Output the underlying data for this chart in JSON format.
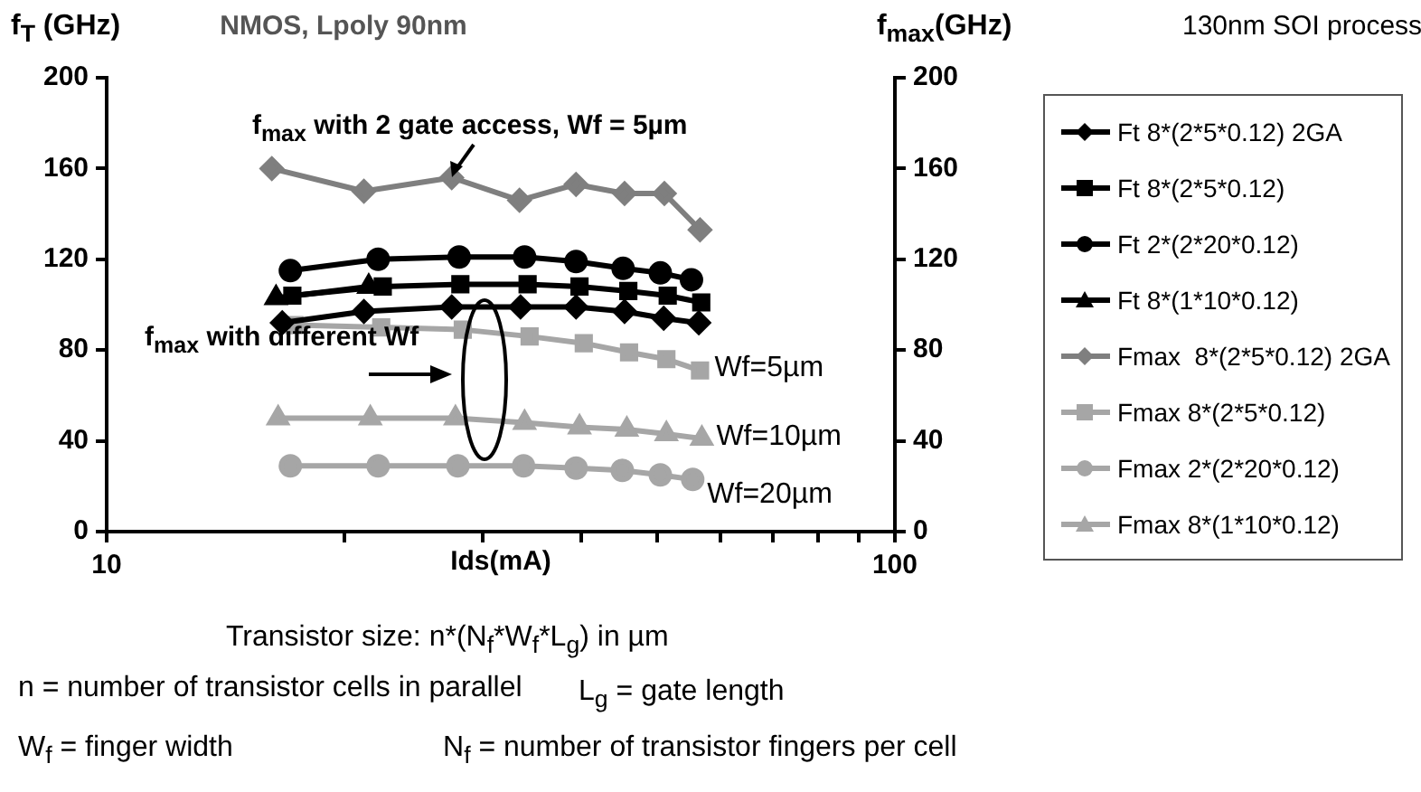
{
  "chart_data": {
    "type": "line",
    "title": "NMOS, Lpoly 90nm",
    "xlabel": "Ids(mA)",
    "ylabel": "f$_{T}$ (GHz)",
    "y2label": "f$_{max}$(GHz)",
    "log": "x",
    "xlim": [
      10,
      100
    ],
    "xticks": [
      10,
      {
        "value": 20,
        "label": null
      },
      {
        "value": 30,
        "label": null
      },
      {
        "value": 40,
        "label": null
      },
      {
        "value": 50,
        "label": null
      },
      {
        "value": 60,
        "label": null
      },
      {
        "value": 70,
        "label": null
      },
      {
        "value": 80,
        "label": null
      },
      {
        "value": 90,
        "label": null
      },
      100
    ],
    "ylim": [
      0,
      200
    ],
    "yticks": [
      0,
      40,
      80,
      120,
      160,
      200
    ],
    "y2lim": [
      0,
      200
    ],
    "y2ticks": [
      0,
      40,
      80,
      120,
      160,
      200
    ],
    "grid": false,
    "legend": "right",
    "line_style": "solid",
    "series": [
      {
        "name": "Ft 8*(2*5*0.12) 2GA",
        "color": "#000000",
        "marker": "diamond",
        "x": [
          16.7,
          21.2,
          27.4,
          33.5,
          39.4,
          45.4,
          50.9,
          56.4
        ],
        "values": [
          92,
          97,
          99,
          99,
          99,
          97,
          94,
          92
        ]
      },
      {
        "name": "Ft 8*(2*5*0.12)",
        "color": "#000000",
        "marker": "square",
        "x": [
          17.2,
          22.4,
          28.1,
          34.2,
          39.8,
          45.9,
          51.5,
          56.8
        ],
        "values": [
          104,
          108,
          109,
          109,
          108,
          106,
          104,
          101
        ]
      },
      {
        "name": "Ft 2*(2*20*0.12)",
        "color": "#000000",
        "marker": "circle",
        "x": [
          17.1,
          22.1,
          28,
          33.9,
          39.4,
          45.2,
          50.4,
          55.2
        ],
        "values": [
          115,
          120,
          121,
          121,
          119,
          116,
          114,
          111
        ]
      },
      {
        "name": "Ft 8*(1*10*0.12)",
        "color": "#000000",
        "marker": "triangle",
        "x": [
          16.4,
          21.5
        ],
        "values": [
          103,
          108
        ]
      },
      {
        "name": "Fmax  8*(2*5*0.12) 2GA",
        "color": "#7f7f7f",
        "marker": "diamond",
        "x": [
          16.2,
          21.2,
          27.4,
          33.4,
          39.4,
          45.4,
          51,
          56.6
        ],
        "values": [
          160,
          150,
          156,
          146,
          153,
          149,
          149,
          133
        ]
      },
      {
        "name": "Fmax 8*(2*5*0.12)",
        "color": "#a6a6a6",
        "marker": "square",
        "x": [
          17.3,
          22.3,
          28.3,
          34.4,
          40.3,
          46,
          51.3,
          56.6
        ],
        "values": [
          91,
          90,
          89,
          86,
          83,
          79,
          76,
          71
        ]
      },
      {
        "name": "Fmax 2*(2*20*0.12)",
        "color": "#a6a6a6",
        "marker": "circle",
        "x": [
          17.1,
          22.1,
          27.9,
          33.8,
          39.4,
          45.1,
          50.4,
          55.4
        ],
        "values": [
          29,
          29,
          29,
          29,
          28,
          27,
          25,
          23
        ]
      },
      {
        "name": "Fmax 8*(1*10*0.12)",
        "color": "#a6a6a6",
        "marker": "triangle",
        "x": [
          16.5,
          21.6,
          27.7,
          33.9,
          39.8,
          45.7,
          51.3,
          56.9
        ],
        "values": [
          50,
          50,
          50,
          48,
          46,
          45,
          43,
          41
        ]
      }
    ],
    "annotations": [
      {
        "text": "f$_{max}$ with 2 gate access, Wf = 5µm",
        "x": 27.4,
        "y": 156
      },
      "f$_{max}$ with different Wf",
      {
        "text": "Wf=5µm",
        "x": 56.6,
        "y": 71
      },
      {
        "text": "Wf=10µm",
        "x": 56.9,
        "y": 41
      },
      {
        "text": "Wf=20µm",
        "x": 55.4,
        "y": 23
      },
      "130nm SOI process",
      "Transistor size: n*(N$_{f}$*W$_{f}$*L$_{g}$) in µm",
      "n = number of transistor cells in parallel",
      "L$_{g}$ = gate length",
      "W$_{f}$ = finger width",
      "N$_{f}$ = number of transistor fingers per cell"
    ]
  }
}
